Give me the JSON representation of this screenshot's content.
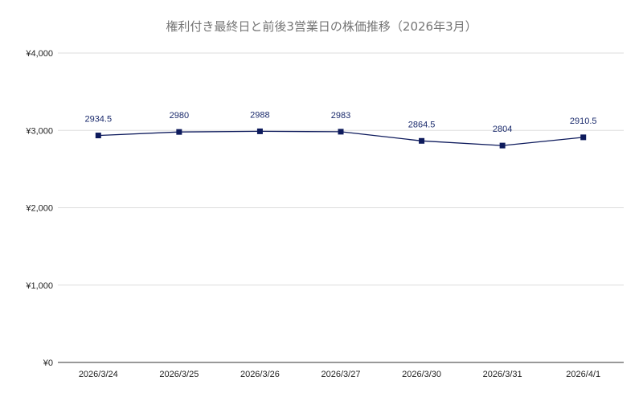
{
  "chart_data": {
    "type": "line",
    "title": "権利付き最終日と前後3営業日の株価推移（2026年3月）",
    "xlabel": "",
    "ylabel": "",
    "categories": [
      "2026/3/24",
      "2026/3/25",
      "2026/3/26",
      "2026/3/27",
      "2026/3/30",
      "2026/3/31",
      "2026/4/1"
    ],
    "series": [
      {
        "values": [
          2934.5,
          2980,
          2988,
          2983,
          2864.5,
          2804,
          2910.5
        ],
        "value_labels": [
          "2934.5",
          "2980",
          "2988",
          "2983",
          "2864.5",
          "2804",
          "2910.5"
        ],
        "color": "#0d1a5c",
        "marker": "square"
      }
    ],
    "ylim": [
      0,
      4000
    ],
    "y_ticks": [
      0,
      1000,
      2000,
      3000,
      4000
    ],
    "y_tick_labels": [
      "¥0",
      "¥1,000",
      "¥2,000",
      "¥3,000",
      "¥4,000"
    ],
    "grid": true,
    "legend": "none",
    "colors": {
      "line": "#0d1a5c",
      "grid": "#dddddd",
      "axis": "#333333"
    }
  }
}
